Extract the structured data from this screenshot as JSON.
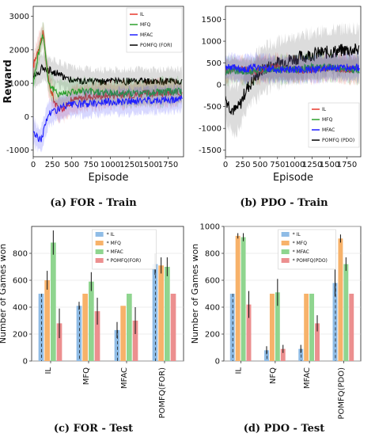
{
  "captions": [
    "(a) FOR - Train",
    "(b) PDO - Train",
    "(c) FOR - Test",
    "(d) PDO - Test"
  ],
  "chart_data": [
    {
      "type": "line",
      "xlabel": "Episode",
      "ylabel": "Reward",
      "xlim": [
        0,
        1950
      ],
      "ylim": [
        -1200,
        3300
      ],
      "xticks": [
        0,
        250,
        500,
        750,
        1000,
        1250,
        1500,
        1750
      ],
      "yticks": [
        -1000,
        0,
        1000,
        2000,
        3000
      ],
      "legend_position": "top-right",
      "series": [
        {
          "name": "IL",
          "color": "#e8392b",
          "x": [
            0,
            60,
            130,
            200,
            300,
            400,
            500,
            750,
            1000,
            1250,
            1500,
            1750,
            1930
          ],
          "values": [
            1500,
            2000,
            2500,
            1000,
            300,
            250,
            500,
            600,
            650,
            650,
            700,
            700,
            700
          ]
        },
        {
          "name": "MFQ",
          "color": "#2ca02c",
          "x": [
            0,
            60,
            130,
            200,
            300,
            400,
            500,
            750,
            1000,
            1250,
            1500,
            1750,
            1930
          ],
          "values": [
            1000,
            1800,
            2500,
            1000,
            700,
            700,
            750,
            750,
            700,
            700,
            700,
            750,
            750
          ]
        },
        {
          "name": "MFAC",
          "color": "#1f1fff",
          "x": [
            0,
            40,
            100,
            150,
            200,
            300,
            400,
            500,
            750,
            1000,
            1250,
            1500,
            1750,
            1930
          ],
          "values": [
            -400,
            -600,
            -700,
            -300,
            100,
            200,
            300,
            350,
            400,
            450,
            450,
            500,
            500,
            550
          ]
        },
        {
          "name": "POMFQ (FOR)",
          "color": "#000000",
          "x": [
            0,
            60,
            130,
            200,
            300,
            400,
            500,
            750,
            1000,
            1250,
            1500,
            1750,
            1930
          ],
          "values": [
            1200,
            1300,
            1500,
            1400,
            1300,
            1200,
            1100,
            1050,
            1050,
            1050,
            1050,
            1050,
            1050
          ]
        }
      ]
    },
    {
      "type": "line",
      "xlabel": "Episode",
      "ylabel": "",
      "xlim": [
        0,
        1950
      ],
      "ylim": [
        -1650,
        1800
      ],
      "xticks": [
        0,
        250,
        500,
        750,
        1000,
        1250,
        1500,
        1750
      ],
      "yticks": [
        -1500,
        -1000,
        -500,
        0,
        500,
        1000,
        1500
      ],
      "legend_position": "bottom-right",
      "series": [
        {
          "name": "IL",
          "color": "#e8392b",
          "x": [
            0,
            100,
            250,
            400,
            500,
            750,
            1000,
            1250,
            1500,
            1750,
            1930
          ],
          "values": [
            300,
            350,
            350,
            300,
            350,
            400,
            350,
            350,
            400,
            350,
            350
          ]
        },
        {
          "name": "MFQ",
          "color": "#2ca02c",
          "x": [
            0,
            100,
            250,
            400,
            500,
            750,
            1000,
            1250,
            1500,
            1750,
            1930
          ],
          "values": [
            300,
            350,
            300,
            300,
            350,
            350,
            350,
            400,
            400,
            350,
            350
          ]
        },
        {
          "name": "MFAC",
          "color": "#1f1fff",
          "x": [
            0,
            100,
            250,
            400,
            500,
            750,
            1000,
            1250,
            1500,
            1750,
            1930
          ],
          "values": [
            400,
            400,
            350,
            400,
            400,
            350,
            350,
            350,
            400,
            400,
            400
          ]
        },
        {
          "name": "POMFQ (PDO)",
          "color": "#000000",
          "x": [
            0,
            60,
            130,
            200,
            300,
            400,
            500,
            600,
            750,
            1000,
            1250,
            1500,
            1750,
            1930
          ],
          "values": [
            -300,
            -500,
            -600,
            -500,
            -100,
            100,
            300,
            400,
            500,
            600,
            700,
            750,
            800,
            800
          ]
        }
      ]
    },
    {
      "type": "bar",
      "xlabel": "",
      "ylabel": "Number of Games won",
      "ylim": [
        0,
        1000
      ],
      "yticks": [
        0,
        200,
        400,
        600,
        800
      ],
      "categories": [
        "IL",
        "MFQ",
        "MFAC",
        "POMFQ(FOR)"
      ],
      "legend_position": "top-center",
      "series": [
        {
          "name": "IL",
          "color": "#8fbce6",
          "values": [
            500,
            410,
            230,
            720
          ],
          "errors": [
            0,
            30,
            60,
            80
          ]
        },
        {
          "name": "MFQ",
          "color": "#f7b26a",
          "values": [
            600,
            500,
            410,
            710
          ],
          "errors": [
            70,
            0,
            0,
            60
          ]
        },
        {
          "name": "MFAC",
          "color": "#8fd58f",
          "values": [
            880,
            590,
            500,
            700
          ],
          "errors": [
            90,
            70,
            0,
            70
          ]
        },
        {
          "name": "POMFQ(FOR)",
          "color": "#ec8f8f",
          "values": [
            280,
            370,
            300,
            500
          ],
          "errors": [
            110,
            100,
            100,
            0
          ]
        }
      ]
    },
    {
      "type": "bar",
      "xlabel": "",
      "ylabel": "Number of Games won",
      "ylim": [
        0,
        1000
      ],
      "yticks": [
        0,
        200,
        400,
        600,
        800,
        1000
      ],
      "categories": [
        "IL",
        "NFQ",
        "MFAC",
        "POMFQ(PDO)"
      ],
      "legend_position": "top-center",
      "series": [
        {
          "name": "IL",
          "color": "#8fbce6",
          "values": [
            500,
            80,
            90,
            580
          ],
          "errors": [
            0,
            30,
            30,
            100
          ]
        },
        {
          "name": "MFQ",
          "color": "#f7b26a",
          "values": [
            930,
            500,
            500,
            910
          ],
          "errors": [
            20,
            0,
            0,
            30
          ]
        },
        {
          "name": "MFAC",
          "color": "#8fd58f",
          "values": [
            920,
            510,
            500,
            720
          ],
          "errors": [
            30,
            100,
            0,
            50
          ]
        },
        {
          "name": "POMFQ(PDO)",
          "color": "#ec8f8f",
          "values": [
            420,
            90,
            280,
            500
          ],
          "errors": [
            100,
            30,
            60,
            0
          ]
        }
      ]
    }
  ]
}
